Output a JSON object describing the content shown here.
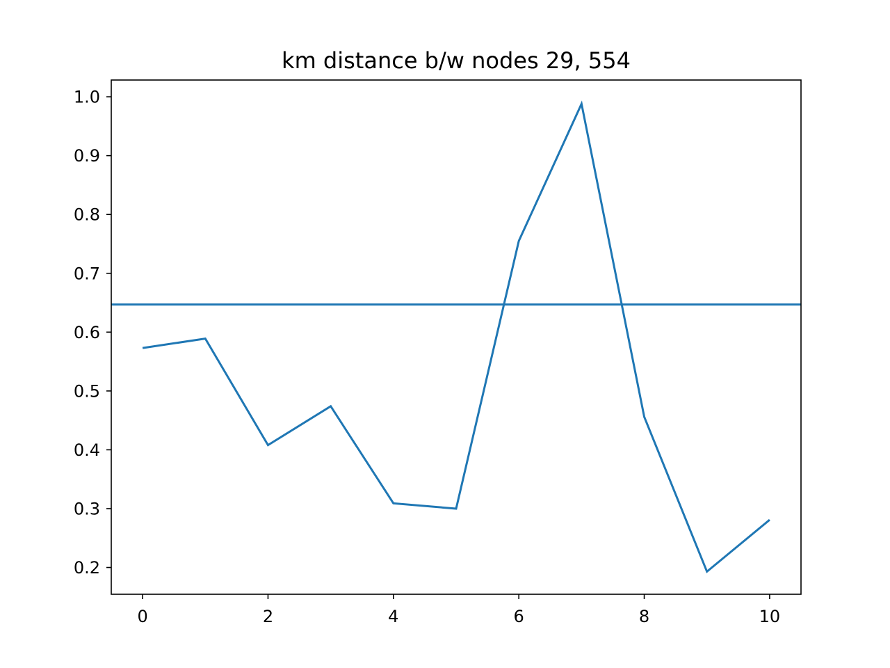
{
  "chart_data": {
    "type": "line",
    "title": "km distance b/w nodes 29, 554",
    "xlabel": "",
    "ylabel": "",
    "xlim": [
      -0.5,
      10.5
    ],
    "ylim": [
      0.1545,
      1.0285
    ],
    "x_ticks": [
      0,
      2,
      4,
      6,
      8,
      10
    ],
    "x_tick_labels": [
      "0",
      "2",
      "4",
      "6",
      "8",
      "10"
    ],
    "y_ticks": [
      0.2,
      0.3,
      0.4,
      0.5,
      0.6,
      0.7,
      0.8,
      0.9,
      1.0
    ],
    "y_tick_labels": [
      "0.2",
      "0.3",
      "0.4",
      "0.5",
      "0.6",
      "0.7",
      "0.8",
      "0.9",
      "1.0"
    ],
    "grid": false,
    "series": [
      {
        "color": "#1f77b4",
        "x": [
          0,
          1,
          2,
          3,
          4,
          5,
          6,
          7,
          8,
          9,
          10
        ],
        "y": [
          0.573,
          0.589,
          0.408,
          0.474,
          0.309,
          0.3,
          0.755,
          0.988,
          0.456,
          0.193,
          0.281
        ]
      }
    ],
    "hlines": [
      {
        "y": 0.647,
        "color": "#1f77b4"
      }
    ]
  }
}
